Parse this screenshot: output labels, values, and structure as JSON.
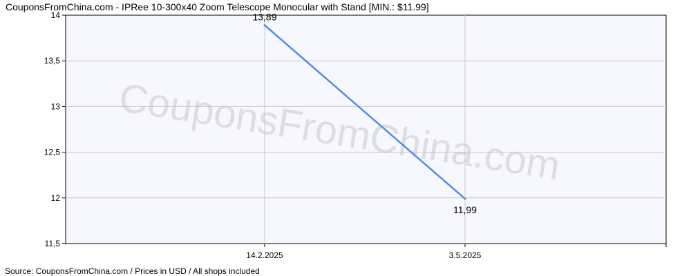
{
  "chart_data": {
    "type": "line",
    "title": "CouponsFromChina.com - IPRee 10-300x40 Zoom Telescope Monocular with Stand [MIN.: $11.99]",
    "x": [
      "14.2.2025",
      "3.5.2025"
    ],
    "series": [
      {
        "values": [
          13.89,
          11.99
        ],
        "value_labels": [
          "13,89",
          "11,99"
        ],
        "color": "#4a8ee6"
      }
    ],
    "ylim": [
      11.5,
      14
    ],
    "yticks": [
      11.5,
      12,
      12.5,
      13,
      13.5,
      14
    ],
    "ytick_labels": [
      "11,5",
      "12",
      "12,5",
      "13",
      "13,5",
      "14"
    ],
    "xlabel": "",
    "ylabel": "",
    "grid": true,
    "plot_background": "#f7f7ff",
    "grid_color": "#c8c8c8"
  },
  "watermark": "CouponsFromChina.com",
  "source": "Source: CouponsFromChina.com / Prices in USD / All shops included"
}
